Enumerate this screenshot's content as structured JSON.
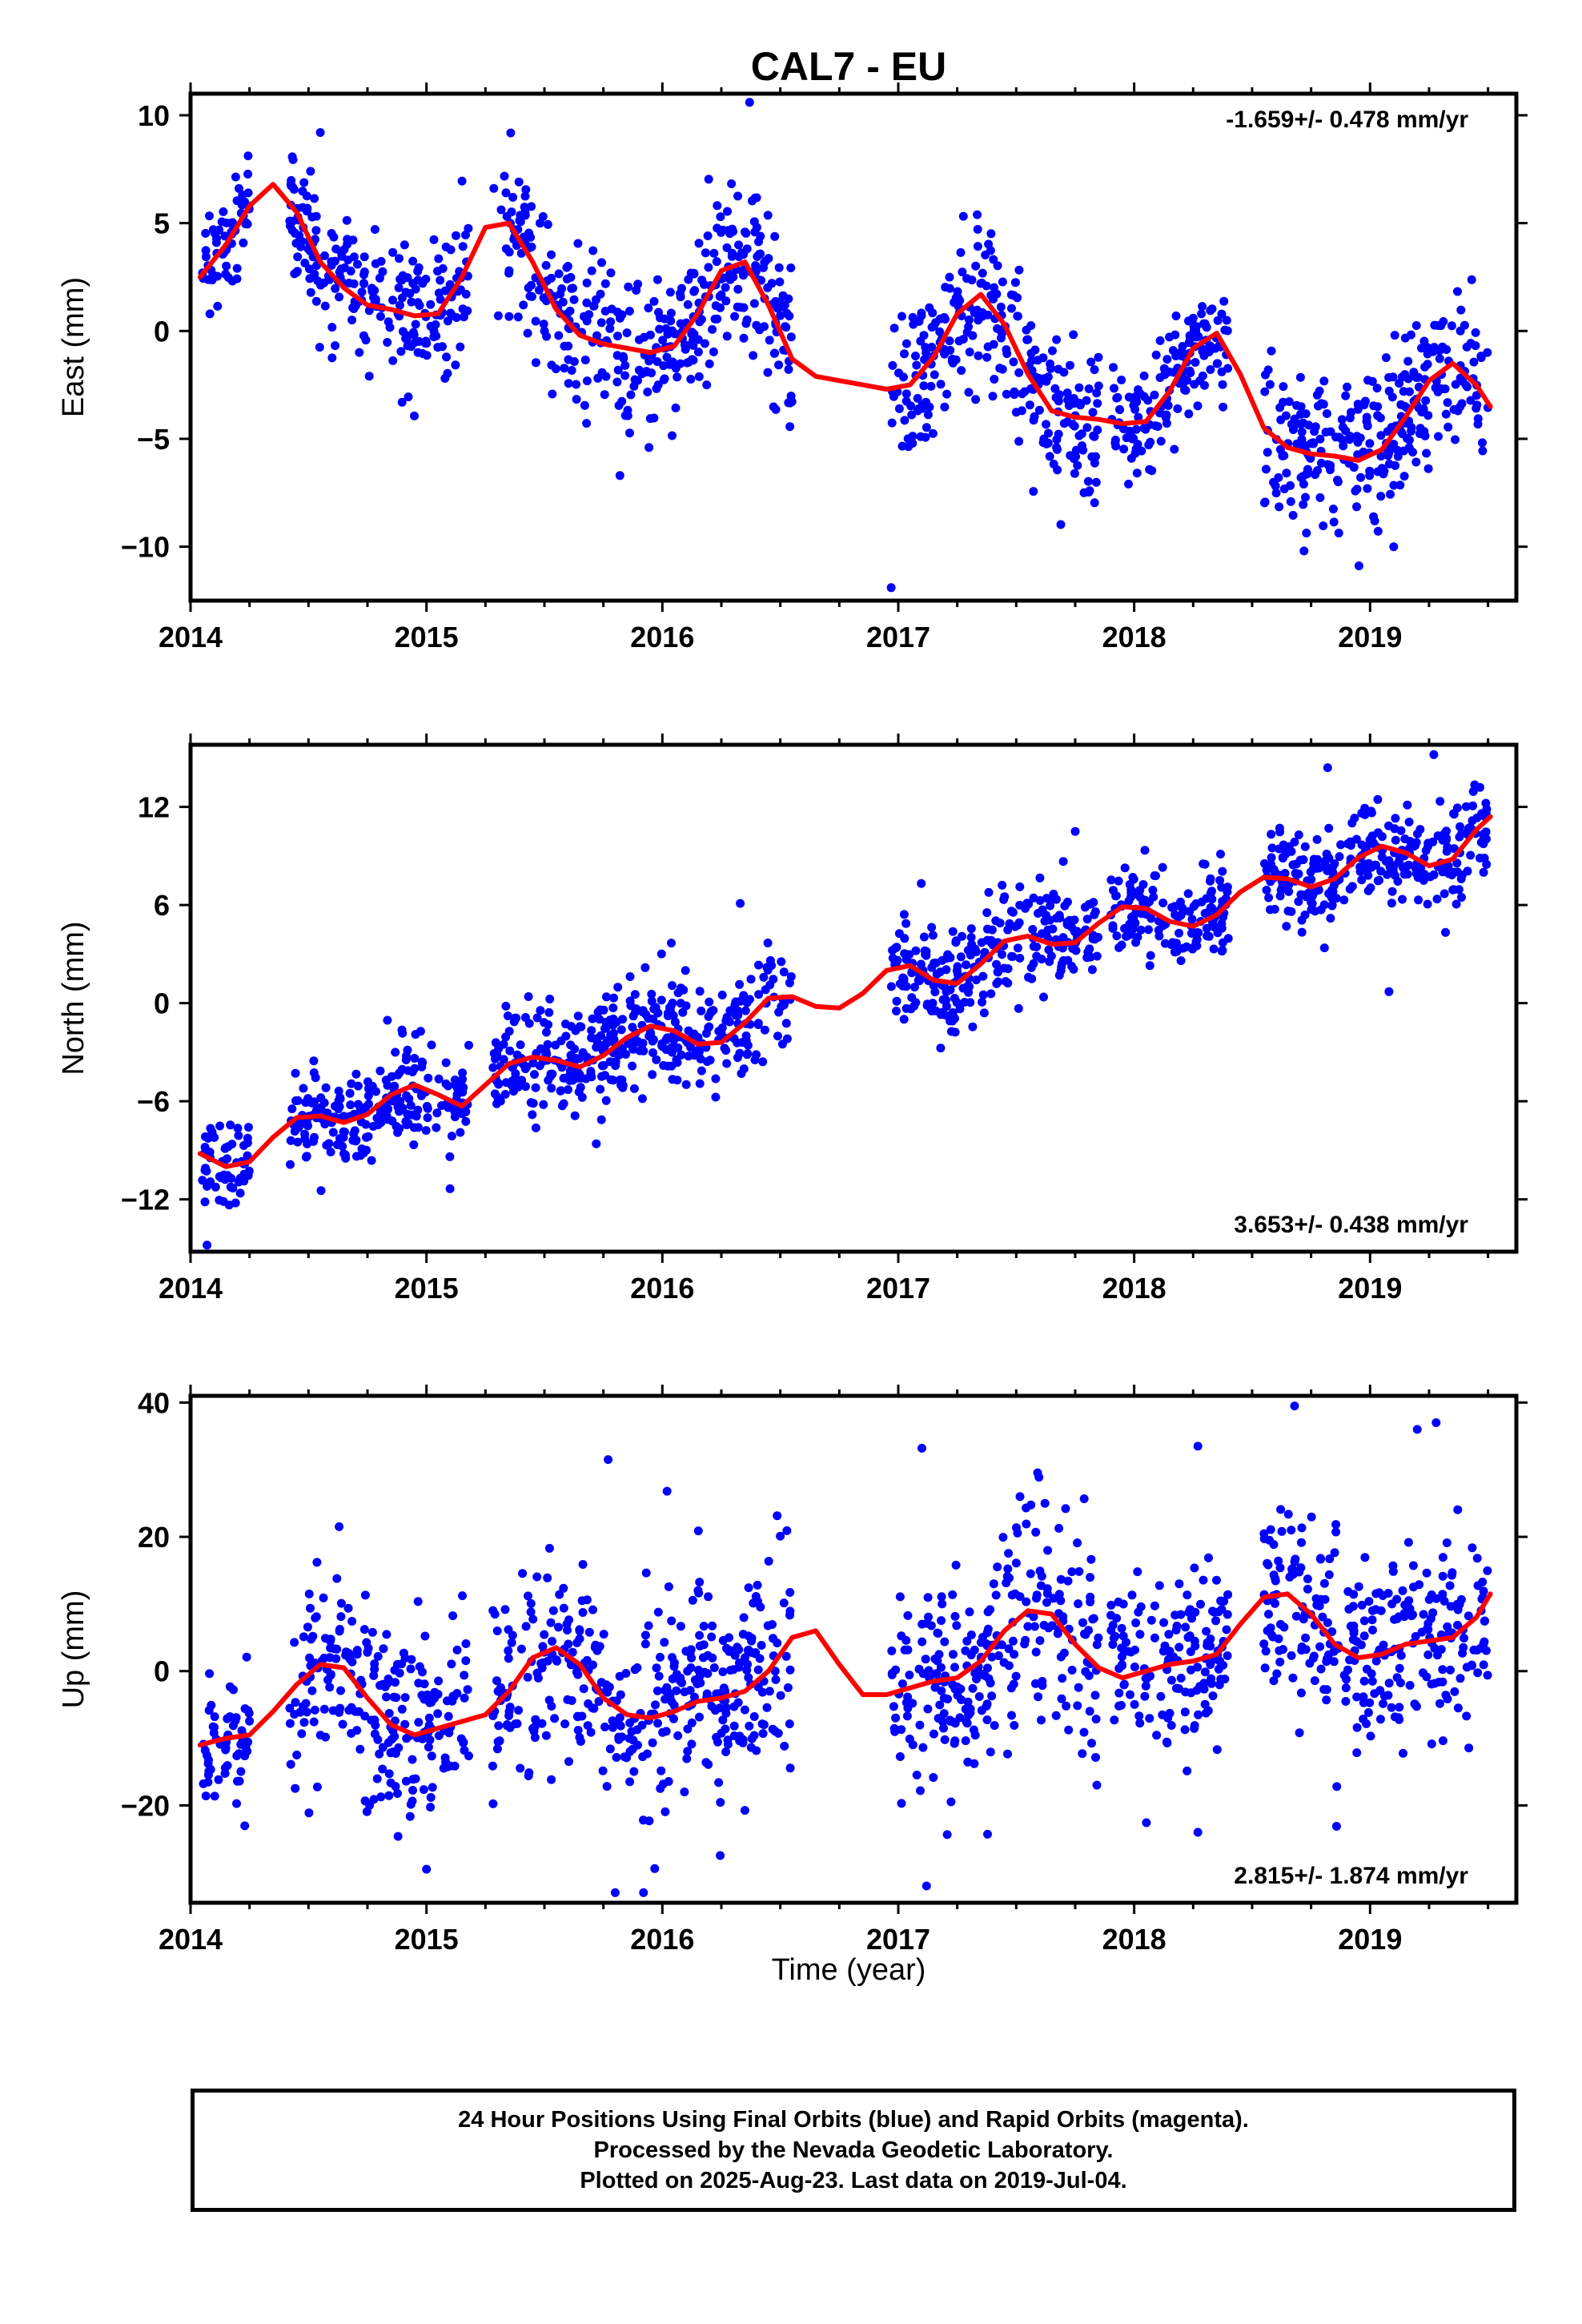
{
  "title": "CAL7 - EU",
  "xlabel": "Time (year)",
  "footer": {
    "line1": "24 Hour Positions Using Final Orbits (blue) and Rapid Orbits (magenta).",
    "line2": "Processed by the Nevada Geodetic Laboratory.",
    "line3": "Plotted on 2025-Aug-23. Last data on 2019-Jul-04."
  },
  "colors": {
    "points": "#0000ff",
    "model": "#ff0000",
    "axes": "#000000"
  },
  "chart_data": [
    {
      "type": "scatter",
      "name": "east",
      "ylabel": "East (mm)",
      "rate_text": "-1.659+/- 0.478 mm/yr",
      "rate_position": "top-right",
      "xlim": [
        2014.0,
        2019.62
      ],
      "ylim": [
        -12.5,
        11.0
      ],
      "xticks": [
        2014,
        2015,
        2016,
        2017,
        2018,
        2019
      ],
      "yticks": [
        10,
        5,
        0,
        -5,
        -10
      ],
      "ytick_labels": [
        "10",
        "5",
        "0",
        "−5",
        "−10"
      ],
      "model_curve": {
        "x": [
          2014.04,
          2014.15,
          2014.25,
          2014.35,
          2014.45,
          2014.55,
          2014.65,
          2014.75,
          2014.85,
          2014.95,
          2015.05,
          2015.15,
          2015.25,
          2015.35,
          2015.45,
          2015.55,
          2015.65,
          2015.75,
          2015.85,
          2015.95,
          2016.05,
          2016.15,
          2016.25,
          2016.35,
          2016.45,
          2016.55,
          2016.65,
          2016.75,
          2016.85,
          2016.95,
          2017.05,
          2017.15,
          2017.25,
          2017.35,
          2017.45,
          2017.55,
          2017.65,
          2017.75,
          2017.85,
          2017.95,
          2018.05,
          2018.15,
          2018.25,
          2018.35,
          2018.45,
          2018.55,
          2018.65,
          2018.75,
          2018.85,
          2018.95,
          2019.05,
          2019.15,
          2019.25,
          2019.35,
          2019.45,
          2019.51
        ],
        "y": [
          2.5,
          4.0,
          5.8,
          6.8,
          5.5,
          3.2,
          2.0,
          1.2,
          1.0,
          0.7,
          0.8,
          2.5,
          4.8,
          5.0,
          3.2,
          1.0,
          -0.2,
          -0.6,
          -0.8,
          -1.0,
          -0.7,
          0.8,
          2.8,
          3.2,
          1.2,
          -1.3,
          -2.1,
          -2.3,
          -2.5,
          -2.7,
          -2.5,
          -1.2,
          0.8,
          1.7,
          0.3,
          -2.0,
          -3.7,
          -4.0,
          -4.1,
          -4.3,
          -4.2,
          -2.8,
          -0.8,
          -0.1,
          -2.0,
          -4.5,
          -5.4,
          -5.7,
          -5.8,
          -6.0,
          -5.5,
          -4.0,
          -2.3,
          -1.5,
          -2.5,
          -3.5
        ]
      },
      "segments": [
        {
          "start": 2014.05,
          "end": 2014.25,
          "amp": 1.3
        },
        {
          "start": 2014.42,
          "end": 2015.18,
          "amp": 1.6
        },
        {
          "start": 2015.28,
          "end": 2016.55,
          "amp": 1.9
        },
        {
          "start": 2016.97,
          "end": 2017.85,
          "amp": 2.0
        },
        {
          "start": 2017.9,
          "end": 2018.4,
          "amp": 1.3
        },
        {
          "start": 2018.55,
          "end": 2019.5,
          "amp": 1.8
        }
      ],
      "points_per_year": 300,
      "outliers": [
        [
          2016.37,
          10.6
        ],
        [
          2016.97,
          -11.9
        ],
        [
          2014.55,
          9.2
        ],
        [
          2015.82,
          -6.7
        ],
        [
          2018.72,
          -10.2
        ],
        [
          2019.1,
          -10.0
        ]
      ]
    },
    {
      "type": "scatter",
      "name": "north",
      "ylabel": "North (mm)",
      "rate_text": "3.653+/- 0.438 mm/yr",
      "rate_position": "bottom-right",
      "xlim": [
        2014.0,
        2019.62
      ],
      "ylim": [
        -15.2,
        15.8
      ],
      "xticks": [
        2014,
        2015,
        2016,
        2017,
        2018,
        2019
      ],
      "yticks": [
        12,
        6,
        0,
        -6,
        -12
      ],
      "ytick_labels": [
        "12",
        "6",
        "0",
        "−6",
        "−12"
      ],
      "model_curve": {
        "x": [
          2014.04,
          2014.15,
          2014.25,
          2014.35,
          2014.45,
          2014.55,
          2014.65,
          2014.75,
          2014.85,
          2014.95,
          2015.05,
          2015.15,
          2015.25,
          2015.35,
          2015.45,
          2015.55,
          2015.65,
          2015.75,
          2015.85,
          2015.95,
          2016.05,
          2016.15,
          2016.25,
          2016.35,
          2016.45,
          2016.55,
          2016.65,
          2016.75,
          2016.85,
          2016.95,
          2017.05,
          2017.15,
          2017.25,
          2017.35,
          2017.45,
          2017.55,
          2017.65,
          2017.75,
          2017.85,
          2017.95,
          2018.05,
          2018.15,
          2018.25,
          2018.35,
          2018.45,
          2018.55,
          2018.65,
          2018.75,
          2018.85,
          2018.95,
          2019.05,
          2019.15,
          2019.25,
          2019.35,
          2019.45,
          2019.51
        ],
        "y": [
          -9.2,
          -10.0,
          -9.7,
          -8.2,
          -7.0,
          -6.9,
          -7.3,
          -6.8,
          -5.6,
          -5.0,
          -5.6,
          -6.3,
          -5.0,
          -3.7,
          -3.3,
          -3.5,
          -3.9,
          -3.2,
          -2.1,
          -1.4,
          -1.7,
          -2.5,
          -2.4,
          -1.2,
          0.3,
          0.4,
          -0.2,
          -0.3,
          0.6,
          2.0,
          2.3,
          1.4,
          1.2,
          2.4,
          3.8,
          4.1,
          3.6,
          3.7,
          4.9,
          5.9,
          5.8,
          5.0,
          4.7,
          5.4,
          6.8,
          7.7,
          7.6,
          7.1,
          7.6,
          8.9,
          9.6,
          9.2,
          8.4,
          8.8,
          10.6,
          11.4
        ]
      },
      "segments": [
        {
          "start": 2014.05,
          "end": 2014.25,
          "amp": 1.3
        },
        {
          "start": 2014.42,
          "end": 2015.18,
          "amp": 1.5
        },
        {
          "start": 2015.28,
          "end": 2016.55,
          "amp": 1.7
        },
        {
          "start": 2016.97,
          "end": 2017.85,
          "amp": 1.7
        },
        {
          "start": 2017.9,
          "end": 2018.4,
          "amp": 1.5
        },
        {
          "start": 2018.55,
          "end": 2019.5,
          "amp": 1.5
        }
      ],
      "points_per_year": 300,
      "outliers": [
        [
          2019.27,
          15.2
        ],
        [
          2018.82,
          14.4
        ],
        [
          2014.07,
          -14.8
        ],
        [
          2015.72,
          -8.6
        ],
        [
          2016.33,
          6.1
        ],
        [
          2019.08,
          0.7
        ],
        [
          2017.75,
          10.5
        ]
      ]
    },
    {
      "type": "scatter",
      "name": "up",
      "ylabel": "Up (mm)",
      "rate_text": "2.815+/- 1.874 mm/yr",
      "rate_position": "bottom-right",
      "xlim": [
        2014.0,
        2019.62
      ],
      "ylim": [
        -34.5,
        41.0
      ],
      "xticks": [
        2014,
        2015,
        2016,
        2017,
        2018,
        2019
      ],
      "yticks": [
        40,
        20,
        0,
        -20
      ],
      "ytick_labels": [
        "40",
        "20",
        "0",
        "−20"
      ],
      "model_curve": {
        "x": [
          2014.04,
          2014.15,
          2014.25,
          2014.35,
          2014.45,
          2014.55,
          2014.65,
          2014.75,
          2014.85,
          2014.95,
          2015.05,
          2015.15,
          2015.25,
          2015.35,
          2015.45,
          2015.55,
          2015.65,
          2015.75,
          2015.85,
          2015.95,
          2016.05,
          2016.15,
          2016.25,
          2016.35,
          2016.45,
          2016.55,
          2016.65,
          2016.75,
          2016.85,
          2016.95,
          2017.05,
          2017.15,
          2017.25,
          2017.35,
          2017.45,
          2017.55,
          2017.65,
          2017.75,
          2017.85,
          2017.95,
          2018.05,
          2018.15,
          2018.25,
          2018.35,
          2018.45,
          2018.55,
          2018.65,
          2018.75,
          2018.85,
          2018.95,
          2019.05,
          2019.15,
          2019.25,
          2019.35,
          2019.45,
          2019.51
        ],
        "y": [
          -11,
          -10,
          -9.5,
          -6,
          -2,
          1,
          0.5,
          -4,
          -8,
          -9.5,
          -8.5,
          -7.5,
          -6.5,
          -3,
          2,
          3.5,
          1,
          -4,
          -6.5,
          -7,
          -6,
          -4.5,
          -4,
          -3,
          0,
          5,
          6,
          1,
          -3.5,
          -3.5,
          -2.5,
          -1.5,
          -1,
          1.5,
          6,
          9,
          8.5,
          4,
          0.5,
          -1,
          0,
          1,
          1.5,
          2.5,
          7,
          11,
          11.5,
          8.5,
          4,
          2,
          2.5,
          4,
          4.5,
          5,
          8,
          11.5
        ]
      },
      "segments": [
        {
          "start": 2014.05,
          "end": 2014.25,
          "amp": 5.0
        },
        {
          "start": 2014.42,
          "end": 2015.18,
          "amp": 7.0
        },
        {
          "start": 2015.28,
          "end": 2016.55,
          "amp": 8.0
        },
        {
          "start": 2016.97,
          "end": 2017.85,
          "amp": 8.0
        },
        {
          "start": 2017.9,
          "end": 2018.4,
          "amp": 6.5
        },
        {
          "start": 2018.55,
          "end": 2019.5,
          "amp": 8.0
        }
      ],
      "points_per_year": 300,
      "outliers": [
        [
          2018.68,
          39.5
        ],
        [
          2019.28,
          37.0
        ],
        [
          2019.2,
          36.0
        ],
        [
          2018.27,
          33.5
        ],
        [
          2017.1,
          33.2
        ],
        [
          2015.77,
          31.5
        ],
        [
          2016.02,
          26.8
        ],
        [
          2015.8,
          -33.0
        ],
        [
          2015.92,
          -33.0
        ],
        [
          2017.12,
          -32.0
        ],
        [
          2015.0,
          -29.5
        ],
        [
          2018.27,
          -24.0
        ]
      ]
    }
  ]
}
